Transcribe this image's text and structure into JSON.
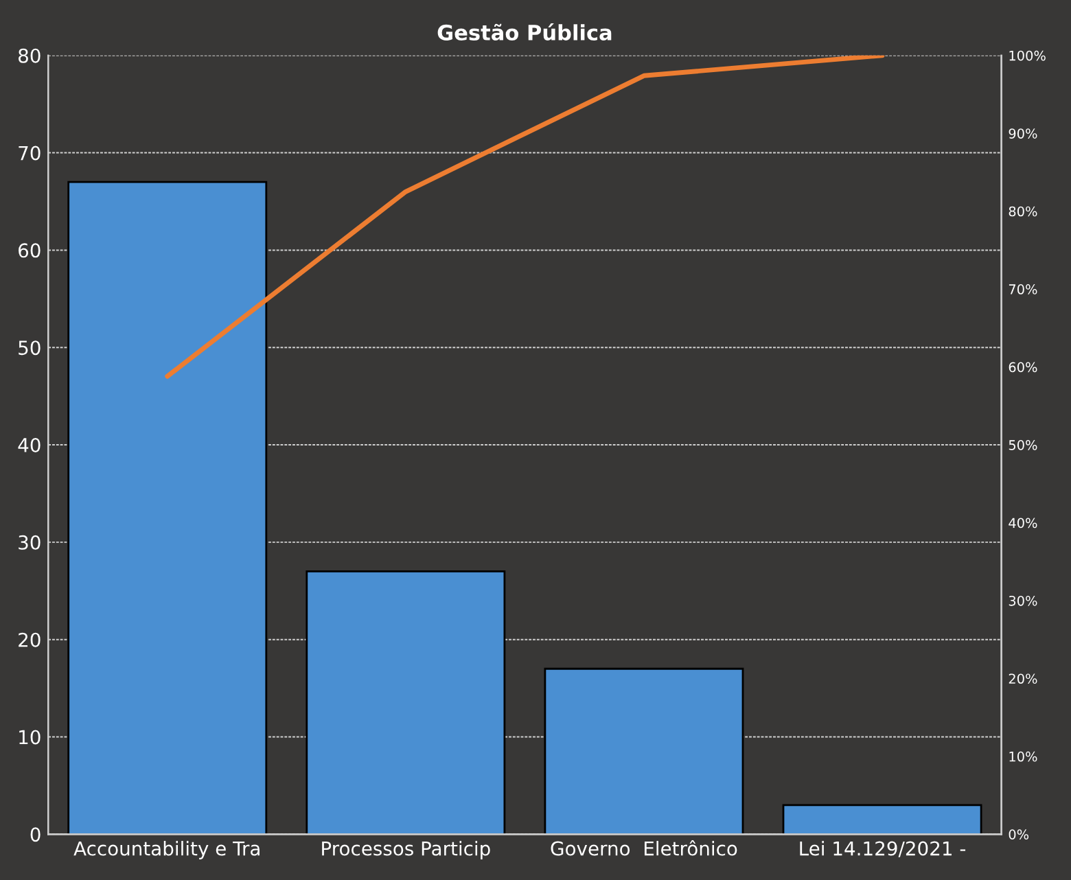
{
  "chart_data": {
    "type": "bar",
    "title": "Gestão Pública",
    "categories": [
      "Accountability e Tra",
      "Processos Particip",
      "Governo  Eletrônico",
      "Lei 14.129/2021 -"
    ],
    "series": [
      {
        "color": "#4a8fd2",
        "values": [
          67,
          27,
          17,
          3
        ]
      },
      {
        "type": "line",
        "axis": "y2",
        "color": "#ed7d31",
        "values": [
          58.8,
          82.5,
          97.4,
          100
        ]
      }
    ],
    "ylim": [
      0,
      80
    ],
    "yticks": [
      0,
      10,
      20,
      30,
      40,
      50,
      60,
      70,
      80
    ],
    "y2lim": [
      0,
      100
    ],
    "y2ticks": [
      {
        "value": 0,
        "label": "0%"
      },
      {
        "value": 10,
        "label": "10%"
      },
      {
        "value": 20,
        "label": "20%"
      },
      {
        "value": 30,
        "label": "30%"
      },
      {
        "value": 40,
        "label": "40%"
      },
      {
        "value": 50,
        "label": "50%"
      },
      {
        "value": 60,
        "label": "60%"
      },
      {
        "value": 70,
        "label": "70%"
      },
      {
        "value": 80,
        "label": "80%"
      },
      {
        "value": 90,
        "label": "90%"
      },
      {
        "value": 100,
        "label": "100%"
      }
    ],
    "grid": "y",
    "marker": "none",
    "line_style": "solid"
  }
}
